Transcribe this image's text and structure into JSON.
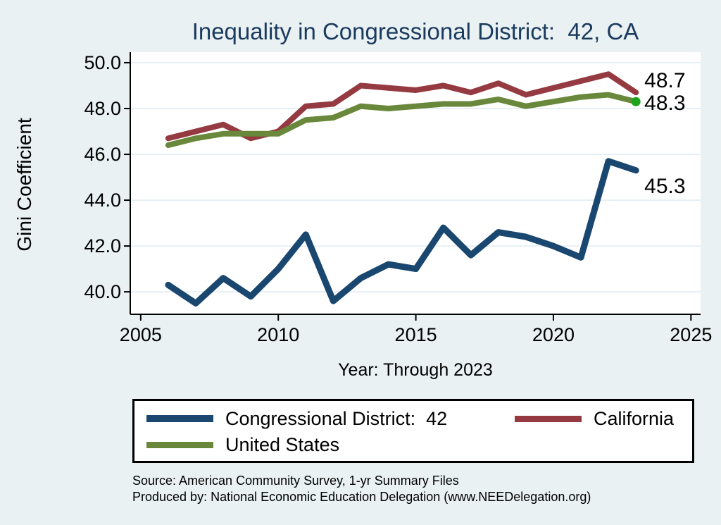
{
  "title": "Inequality in Congressional District:  42, CA",
  "chart_data": {
    "type": "line",
    "title": "Inequality in Congressional District:  42, CA",
    "xlabel": "Year: Through 2023",
    "ylabel": "Gini Coefficient",
    "x": [
      2006,
      2007,
      2008,
      2009,
      2010,
      2011,
      2012,
      2013,
      2014,
      2015,
      2016,
      2017,
      2018,
      2019,
      2020,
      2021,
      2022,
      2023
    ],
    "series": [
      {
        "name": "Congressional District:  42",
        "color": "#1A476F",
        "width": 9,
        "values": [
          40.3,
          39.5,
          40.6,
          39.8,
          41.0,
          42.5,
          39.6,
          40.6,
          41.2,
          41.0,
          42.8,
          41.6,
          42.6,
          42.4,
          42.0,
          41.5,
          45.7,
          45.3
        ],
        "end_label": "45.3"
      },
      {
        "name": "California",
        "color": "#943A40",
        "width": 8,
        "values": [
          46.7,
          47.0,
          47.3,
          46.7,
          47.0,
          48.1,
          48.2,
          49.0,
          48.9,
          48.8,
          49.0,
          48.7,
          49.1,
          48.6,
          48.9,
          49.2,
          49.5,
          48.7
        ],
        "end_label": "48.7"
      },
      {
        "name": "United States",
        "color": "#69883B",
        "width": 8,
        "values": [
          46.4,
          46.7,
          46.9,
          46.9,
          46.9,
          47.5,
          47.6,
          48.1,
          48.0,
          48.1,
          48.2,
          48.2,
          48.4,
          48.1,
          48.3,
          48.5,
          48.6,
          48.3
        ],
        "end_label": "48.3",
        "end_marker": true,
        "end_marker_color": "#1CA41C"
      }
    ],
    "xticks": [
      2005,
      2010,
      2015,
      2020,
      2025
    ],
    "yticks": [
      40,
      42,
      44,
      46,
      48,
      50
    ],
    "ytick_decimals": 1,
    "xlim": [
      2004.62,
      2025.35
    ],
    "ylim": [
      39.02,
      50.46
    ],
    "grid": true,
    "legend_position": "bottom"
  },
  "legend": {
    "entries": [
      {
        "label": "Congressional District:  42"
      },
      {
        "label": "California"
      },
      {
        "label": "United States"
      }
    ]
  },
  "source": {
    "line1": "Source: American Community Survey, 1-yr Summary Files",
    "line2": "Produced by: National Economic Education Delegation (www.NEEDelegation.org)"
  },
  "colors": {
    "background": "#E9F1F2",
    "plot_background": "#FFFFFF",
    "gridline": "#DEEAF1",
    "axis": "#000000",
    "title_text": "#1A3A5E"
  }
}
